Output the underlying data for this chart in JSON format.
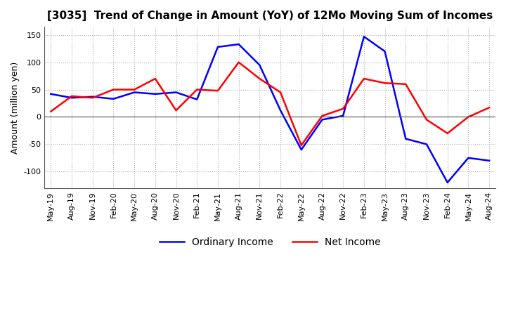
{
  "title": "[3035]  Trend of Change in Amount (YoY) of 12Mo Moving Sum of Incomes",
  "ylabel": "Amount (million yen)",
  "ylim": [
    -130,
    165
  ],
  "yticks": [
    -100,
    -50,
    0,
    50,
    100,
    150
  ],
  "x_labels": [
    "May-19",
    "Aug-19",
    "Nov-19",
    "Feb-20",
    "May-20",
    "Aug-20",
    "Nov-20",
    "Feb-21",
    "May-21",
    "Aug-21",
    "Nov-21",
    "Feb-22",
    "May-22",
    "Aug-22",
    "Nov-22",
    "Feb-23",
    "May-23",
    "Aug-23",
    "Nov-23",
    "Feb-24",
    "May-24",
    "Aug-24"
  ],
  "ordinary_income": [
    42,
    35,
    37,
    33,
    45,
    42,
    45,
    32,
    128,
    133,
    95,
    12,
    -60,
    -5,
    2,
    147,
    120,
    -40,
    -50,
    -120,
    -75,
    -80
  ],
  "net_income": [
    10,
    38,
    35,
    50,
    50,
    70,
    12,
    50,
    48,
    100,
    70,
    45,
    -52,
    2,
    15,
    70,
    62,
    60,
    -5,
    -30,
    0,
    17
  ],
  "ordinary_color": "#0000ff",
  "net_color": "#ff0000",
  "grid_color": "#b0b0b0",
  "background_color": "#ffffff",
  "title_fontsize": 11,
  "label_fontsize": 9,
  "tick_fontsize": 8,
  "legend_labels": [
    "Ordinary Income",
    "Net Income"
  ]
}
